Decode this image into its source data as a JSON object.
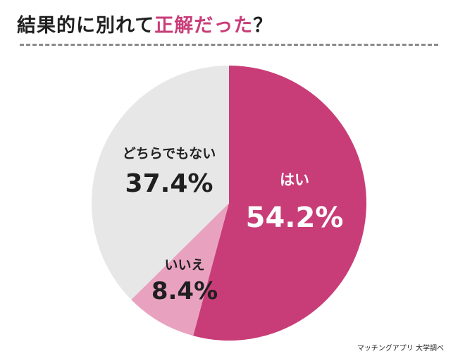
{
  "title": {
    "prefix": "結果的に別れて",
    "highlight": "正解だった",
    "suffix": "？"
  },
  "source": "マッチングアプリ 大学調べ",
  "chart_data": {
    "type": "pie",
    "title": "結果的に別れて正解だった？",
    "slices": [
      {
        "label": "はい",
        "value": 54.2,
        "display": "54.2%",
        "color": "#c83d78",
        "text_color": "#ffffff"
      },
      {
        "label": "いいえ",
        "value": 8.4,
        "display": "8.4%",
        "color": "#e8a2bf",
        "text_color": "#1f1f1f"
      },
      {
        "label": "どちらでもない",
        "value": 37.4,
        "display": "37.4%",
        "color": "#e8e7e7",
        "text_color": "#1f1f1f"
      }
    ],
    "start": "top",
    "direction": "clockwise",
    "legend": "none"
  }
}
